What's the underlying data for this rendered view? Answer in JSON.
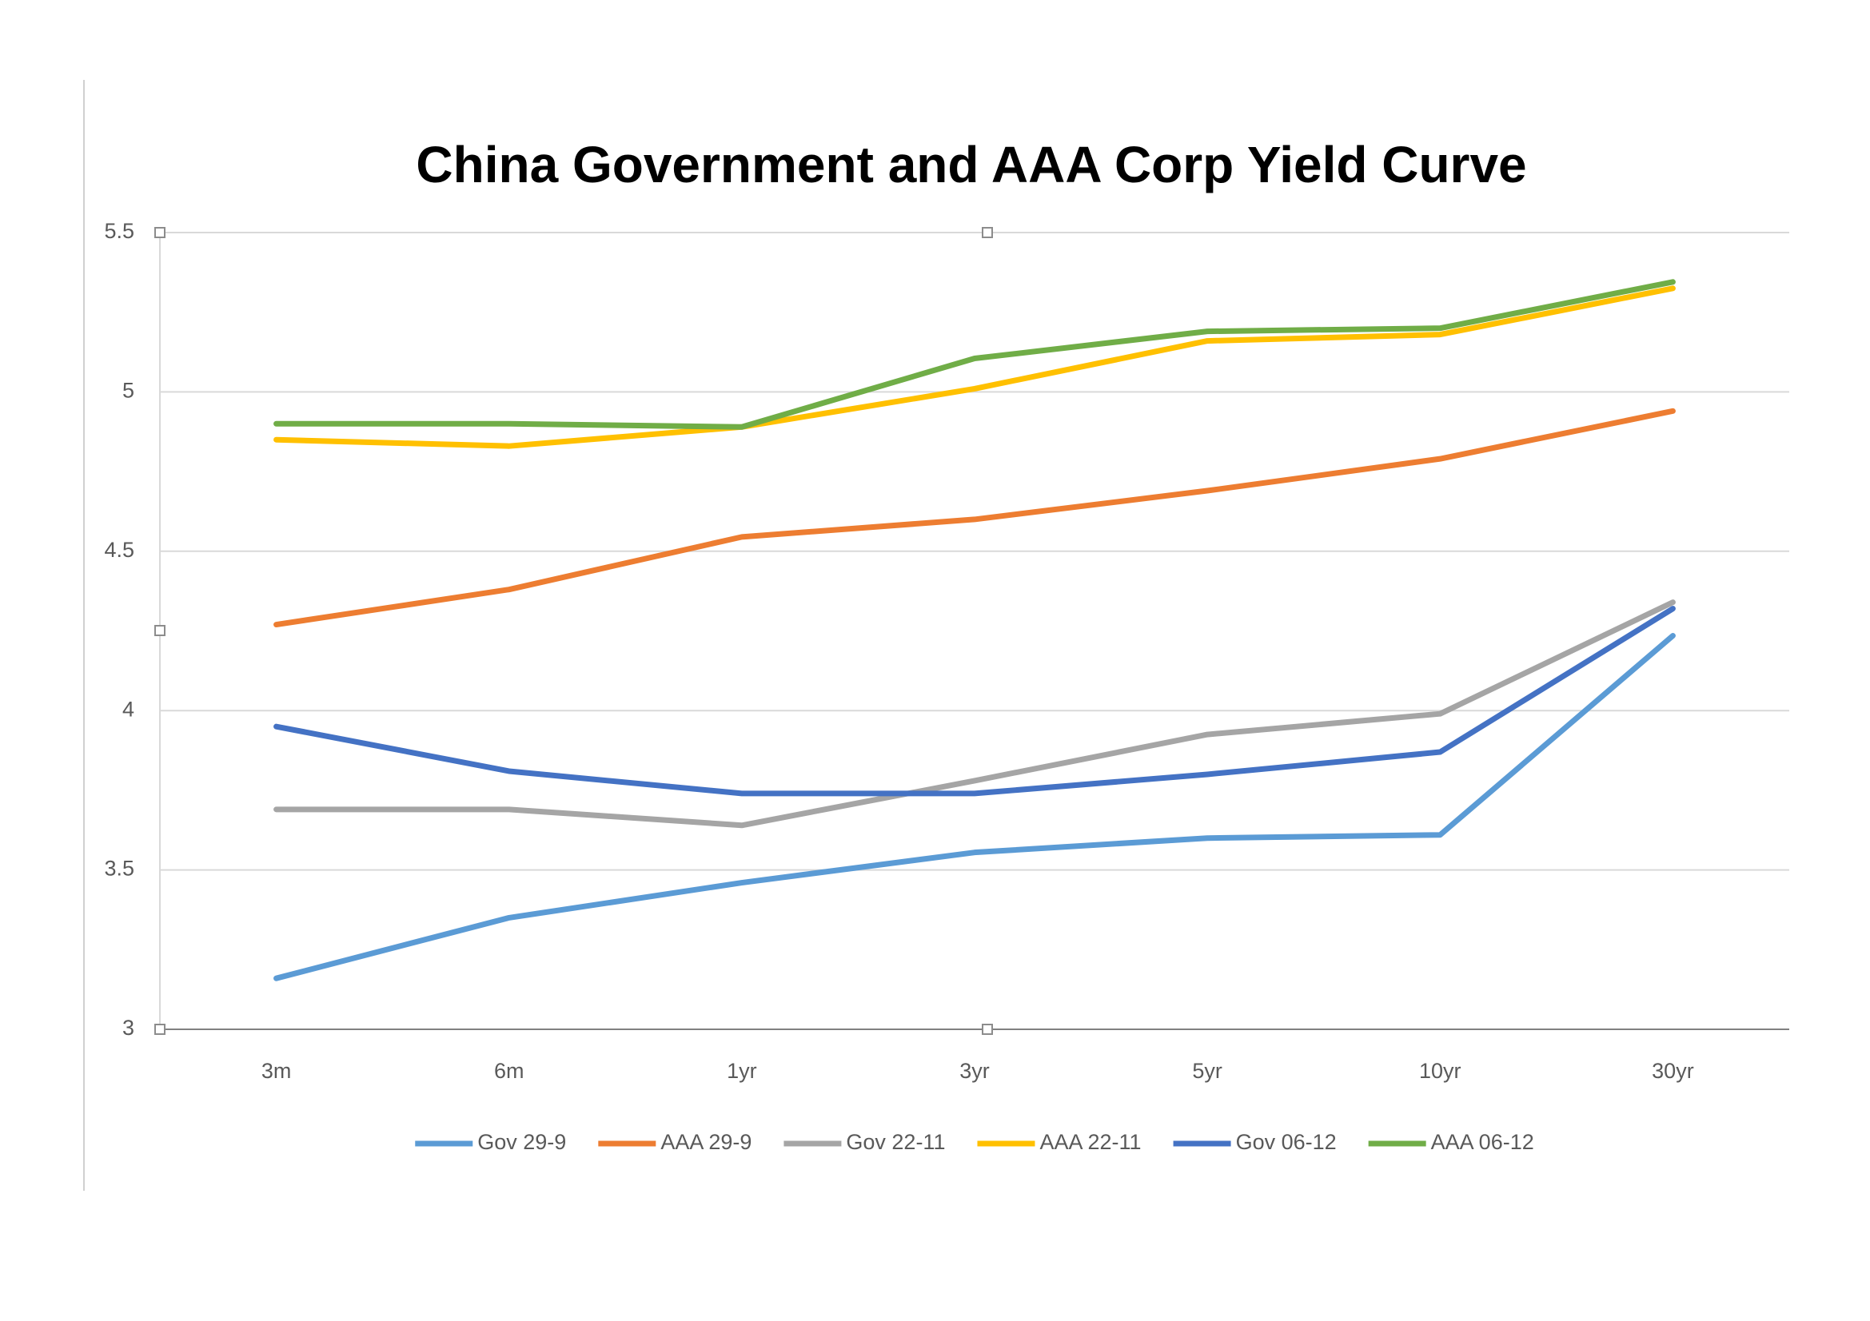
{
  "chart_data": {
    "type": "line",
    "title": "China Government and AAA Corp Yield Curve",
    "categories": [
      "3m",
      "6m",
      "1yr",
      "3yr",
      "5yr",
      "10yr",
      "30yr"
    ],
    "series": [
      {
        "name": "Gov 29-9",
        "color": "#5b9bd5",
        "values": [
          3.16,
          3.35,
          3.46,
          3.555,
          3.6,
          3.61,
          4.235
        ]
      },
      {
        "name": "AAA 29-9",
        "color": "#ed7d31",
        "values": [
          4.27,
          4.38,
          4.545,
          4.6,
          4.69,
          4.79,
          4.94
        ]
      },
      {
        "name": "Gov 22-11",
        "color": "#a5a5a5",
        "values": [
          3.69,
          3.69,
          3.64,
          3.78,
          3.925,
          3.99,
          4.34
        ]
      },
      {
        "name": "AAA 22-11",
        "color": "#ffc000",
        "values": [
          4.85,
          4.83,
          4.89,
          5.01,
          5.16,
          5.18,
          5.325
        ]
      },
      {
        "name": "Gov 06-12",
        "color": "#4472c4",
        "values": [
          3.95,
          3.81,
          3.74,
          3.74,
          3.8,
          3.87,
          4.32
        ]
      },
      {
        "name": "AAA 06-12",
        "color": "#70ad47",
        "values": [
          4.9,
          4.9,
          4.89,
          5.105,
          5.19,
          5.2,
          5.345
        ]
      }
    ],
    "ylim": [
      3,
      5.5
    ],
    "yticks": [
      3,
      3.5,
      4,
      4.5,
      5,
      5.5
    ],
    "grid": true,
    "legend": "bottom"
  }
}
